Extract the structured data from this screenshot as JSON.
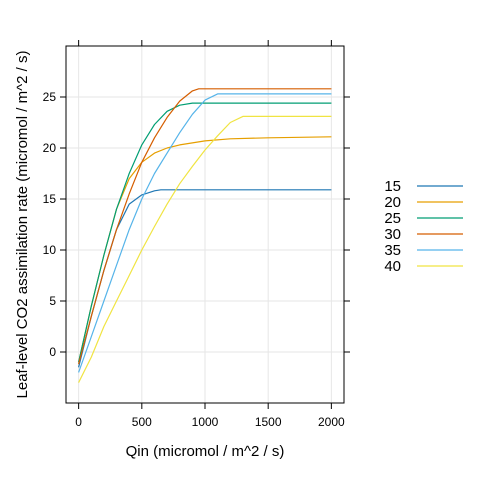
{
  "chart_data": {
    "type": "line",
    "xlabel": "Qin (micromol / m^2 / s)",
    "ylabel": "Leaf-level CO2 assimilation rate (micromol / m^2 / s)",
    "xlim": [
      -100,
      2100
    ],
    "ylim": [
      -5,
      30
    ],
    "x_ticks": [
      0,
      500,
      1000,
      1500,
      2000
    ],
    "y_ticks": [
      0,
      5,
      10,
      15,
      20,
      25
    ],
    "grid": true,
    "legend_position": "right",
    "series": [
      {
        "name": "15",
        "color": "#1f77b4",
        "x": [
          0,
          100,
          200,
          300,
          400,
          500,
          600,
          650,
          700,
          1000,
          1500,
          2000
        ],
        "y": [
          -1.5,
          3.5,
          8.0,
          12.0,
          14.5,
          15.4,
          15.8,
          15.9,
          15.9,
          15.9,
          15.9,
          15.9
        ]
      },
      {
        "name": "20",
        "color": "#e69f00",
        "x": [
          0,
          100,
          200,
          300,
          400,
          500,
          600,
          700,
          800,
          900,
          1000,
          1200,
          1500,
          2000
        ],
        "y": [
          -1.0,
          4.5,
          9.5,
          14.0,
          17.0,
          18.6,
          19.5,
          20.0,
          20.3,
          20.5,
          20.7,
          20.9,
          21.0,
          21.1
        ]
      },
      {
        "name": "25",
        "color": "#009e73",
        "x": [
          0,
          100,
          200,
          300,
          400,
          500,
          600,
          700,
          800,
          900,
          1000,
          1500,
          2000
        ],
        "y": [
          -1.0,
          4.5,
          9.5,
          14.0,
          17.5,
          20.3,
          22.3,
          23.6,
          24.2,
          24.4,
          24.4,
          24.4,
          24.4
        ]
      },
      {
        "name": "30",
        "color": "#d55e00",
        "x": [
          0,
          100,
          200,
          300,
          400,
          500,
          600,
          700,
          800,
          900,
          950,
          1000,
          1500,
          2000
        ],
        "y": [
          -1.2,
          3.5,
          8.0,
          12.0,
          15.5,
          18.6,
          21.0,
          23.0,
          24.6,
          25.6,
          25.8,
          25.8,
          25.8,
          25.8
        ]
      },
      {
        "name": "35",
        "color": "#56b4e9",
        "x": [
          0,
          100,
          200,
          300,
          400,
          500,
          600,
          700,
          800,
          900,
          1000,
          1100,
          1500,
          2000
        ],
        "y": [
          -2.0,
          1.5,
          5.0,
          8.5,
          12.0,
          15.0,
          17.5,
          19.5,
          21.5,
          23.3,
          24.7,
          25.3,
          25.3,
          25.3
        ]
      },
      {
        "name": "40",
        "color": "#f0e442",
        "x": [
          0,
          100,
          200,
          300,
          400,
          500,
          600,
          700,
          800,
          900,
          1000,
          1100,
          1200,
          1300,
          1500,
          2000
        ],
        "y": [
          -3.0,
          -0.5,
          2.5,
          5.0,
          7.5,
          10.0,
          12.3,
          14.5,
          16.5,
          18.2,
          19.8,
          21.2,
          22.5,
          23.1,
          23.1,
          23.1
        ]
      }
    ]
  }
}
